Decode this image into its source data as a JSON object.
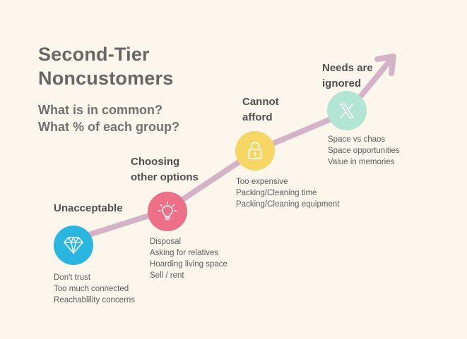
{
  "title": [
    "Second-Tier",
    "Noncustomers"
  ],
  "subtitle": [
    "What is in common?",
    "What % of each group?"
  ],
  "colors": {
    "background": "#fdf6ec",
    "arrow": "#d4b2c8",
    "stage1": "#2bb6df",
    "stage2": "#ee6f88",
    "stage3": "#f6d765",
    "stage4": "#b3e5d4"
  },
  "stages": [
    {
      "heading": [
        "Unacceptable"
      ],
      "icon": "diamond-icon",
      "items": [
        "Don't trust",
        "Too much connected",
        "Reachablility concerns"
      ]
    },
    {
      "heading": [
        "Choosing",
        "other options"
      ],
      "icon": "lightbulb-icon",
      "items": [
        "Disposal",
        "Asking for relatives",
        "Hoarding living space",
        "Sell / rent"
      ]
    },
    {
      "heading": [
        "Cannot",
        "afford"
      ],
      "icon": "lock-icon",
      "items": [
        "Too expensive",
        "Packing/Cleaning time",
        "Packing/Cleaning equipment"
      ]
    },
    {
      "heading": [
        "Needs are",
        "ignored"
      ],
      "icon": "x-logo-icon",
      "items": [
        "Space vs chaos",
        "Space opportunities",
        "Value in memories"
      ]
    }
  ]
}
